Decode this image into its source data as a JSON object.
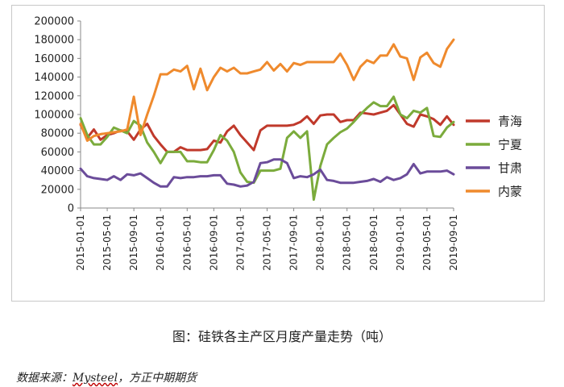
{
  "chart_data": {
    "type": "line",
    "title": "",
    "xlabel": "",
    "ylabel": "",
    "ylim": [
      0,
      200000
    ],
    "yticks": [
      "0",
      "20000",
      "40000",
      "60000",
      "80000",
      "100000",
      "120000",
      "140000",
      "160000",
      "180000",
      "200000"
    ],
    "xtick_labels": [
      "2015-01-01",
      "2015-05-01",
      "2015-09-01",
      "2016-01-01",
      "2016-05-01",
      "2016-09-01",
      "2017-01-01",
      "2017-05-01",
      "2017-09-01",
      "2018-01-01",
      "2018-05-01",
      "2018-09-01",
      "2019-01-01",
      "2019-05-01",
      "2019-09-01"
    ],
    "n_points": 57,
    "legend_position": "right",
    "series": [
      {
        "name": "青海",
        "color": "#c0392b",
        "values": [
          89000,
          75000,
          84000,
          73000,
          78000,
          80000,
          83000,
          82000,
          73000,
          84000,
          90000,
          77000,
          68000,
          60000,
          60000,
          65000,
          62000,
          62000,
          62000,
          63000,
          72000,
          70000,
          82000,
          88000,
          78000,
          70000,
          62000,
          83000,
          88000,
          88000,
          88000,
          88000,
          89000,
          92000,
          98000,
          90000,
          99000,
          100000,
          100000,
          92000,
          94000,
          94000,
          102000,
          101000,
          100000,
          102000,
          104000,
          110000,
          100000,
          90000,
          87000,
          100000,
          98000,
          95000,
          89000,
          98000,
          89000
        ]
      },
      {
        "name": "宁夏",
        "color": "#7bab3c",
        "values": [
          96000,
          78000,
          68000,
          68000,
          76000,
          86000,
          83000,
          80000,
          93000,
          88000,
          70000,
          60000,
          48000,
          60000,
          60000,
          60000,
          50000,
          50000,
          49000,
          49000,
          62000,
          78000,
          72000,
          60000,
          38000,
          28000,
          27000,
          40000,
          40000,
          40000,
          42000,
          75000,
          82000,
          75000,
          82000,
          9000,
          45000,
          68000,
          75000,
          81000,
          85000,
          92000,
          100000,
          107000,
          113000,
          109000,
          109000,
          119000,
          100000,
          96000,
          104000,
          102000,
          107000,
          77000,
          76000,
          86000,
          92000
        ]
      },
      {
        "name": "甘肃",
        "color": "#6b4c9a",
        "values": [
          42000,
          34000,
          32000,
          31000,
          30000,
          34000,
          30000,
          36000,
          35000,
          37000,
          32000,
          27000,
          23000,
          23000,
          33000,
          32000,
          33000,
          33000,
          34000,
          34000,
          35000,
          35000,
          26000,
          25000,
          23000,
          24000,
          28000,
          48000,
          49000,
          52000,
          52000,
          48000,
          32000,
          34000,
          33000,
          36000,
          41000,
          30000,
          29000,
          27000,
          27000,
          27000,
          28000,
          29000,
          31000,
          28000,
          33000,
          30000,
          32000,
          36000,
          47000,
          37000,
          39000,
          39000,
          39000,
          40000,
          36000
        ]
      },
      {
        "name": "内蒙",
        "color": "#ef8a2d",
        "values": [
          90000,
          72000,
          77000,
          79000,
          80000,
          81000,
          82000,
          84000,
          119000,
          78000,
          100000,
          120000,
          143000,
          143000,
          148000,
          146000,
          152000,
          127000,
          149000,
          126000,
          140000,
          150000,
          146000,
          150000,
          144000,
          144000,
          146000,
          148000,
          156000,
          147000,
          154000,
          146000,
          155000,
          153000,
          156000,
          156000,
          156000,
          156000,
          156000,
          165000,
          153000,
          137000,
          151000,
          158000,
          155000,
          163000,
          163000,
          175000,
          162000,
          160000,
          137000,
          161000,
          166000,
          155000,
          151000,
          170000,
          180000
        ]
      }
    ]
  },
  "caption": "图：硅铁各主产区月度产量走势（吨）",
  "source": {
    "prefix": "数据来源：",
    "brand": "Mysteel",
    "suffix": "，方正中期期货"
  }
}
